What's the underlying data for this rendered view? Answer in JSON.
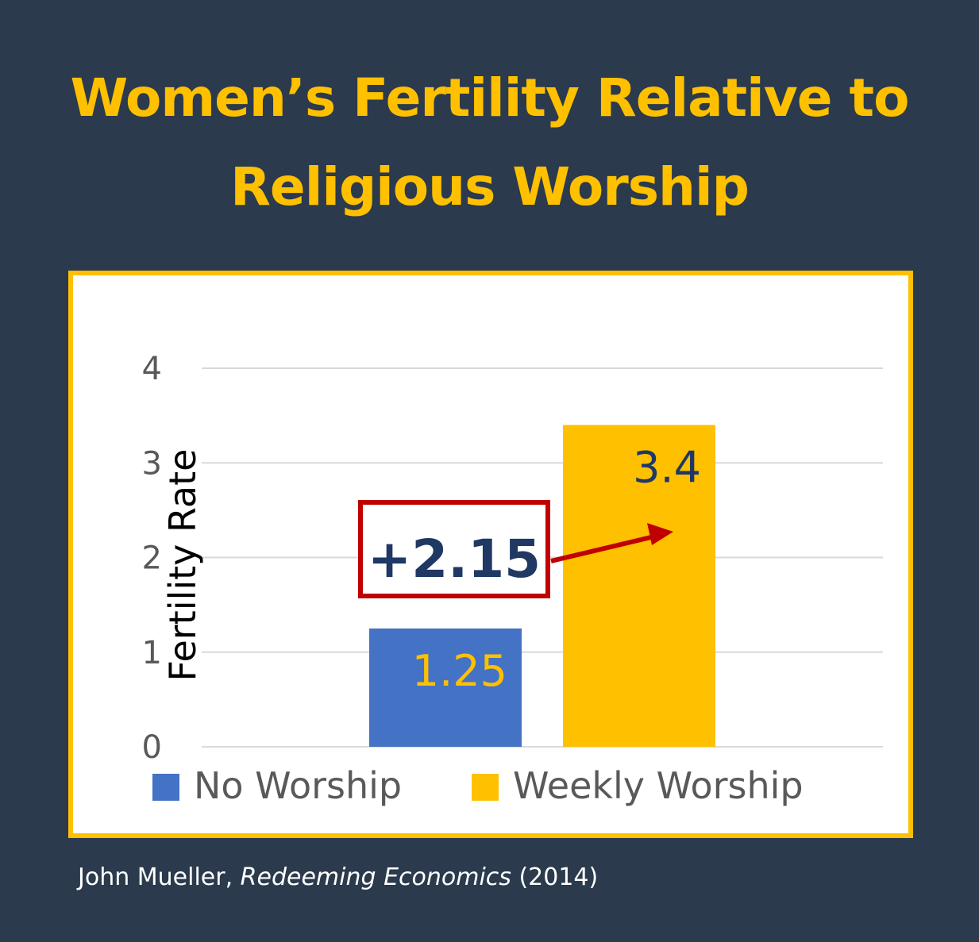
{
  "title_lines": [
    "Women’s Fertility Relative to",
    "Religious Worship"
  ],
  "source": {
    "author": "John Mueller, ",
    "work": "Redeeming Economics",
    "year": " (2014)"
  },
  "chart_data": {
    "type": "bar",
    "categories": [
      "No Worship",
      "Weekly Worship"
    ],
    "values": [
      1.25,
      3.4
    ],
    "value_labels": [
      "1.25",
      "3.4"
    ],
    "ylabel": "Fertility Rate",
    "ylim": [
      0,
      4
    ],
    "yticks": [
      0,
      1,
      2,
      3,
      4
    ],
    "grid": true,
    "legend_position": "bottom",
    "colors": [
      "#4472c4",
      "#ffc000"
    ],
    "label_colors": [
      "#ffc000",
      "#1f3864"
    ],
    "annotation": {
      "text": "+2.15",
      "text_color": "#1f3864",
      "box_color": "#c00000",
      "arrow_color": "#c00000"
    }
  },
  "colors": {
    "background": "#2b3a4c",
    "accent": "#ffc000",
    "panel": "#ffffff",
    "gridline": "#d9d9d9",
    "tick_text": "#595959"
  }
}
